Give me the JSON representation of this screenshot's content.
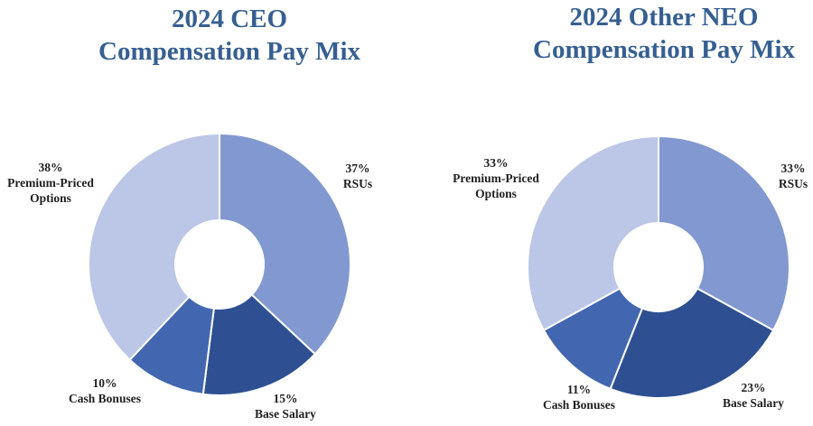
{
  "chart_data": [
    {
      "type": "pie",
      "title_lines": [
        "2024 CEO",
        "Compensation Pay Mix"
      ],
      "slices": [
        {
          "label_lines": [
            "RSUs"
          ],
          "value": 37,
          "value_text": "37%",
          "color": "#8298d0"
        },
        {
          "label_lines": [
            "Base Salary"
          ],
          "value": 15,
          "value_text": "15%",
          "color": "#2e5092"
        },
        {
          "label_lines": [
            "Cash Bonuses"
          ],
          "value": 10,
          "value_text": "10%",
          "color": "#4266b0"
        },
        {
          "label_lines": [
            "Premium-Priced",
            "Options"
          ],
          "value": 38,
          "value_text": "38%",
          "color": "#bcc6e6"
        }
      ]
    },
    {
      "type": "pie",
      "title_lines": [
        "2024 Other NEO",
        "Compensation Pay Mix"
      ],
      "slices": [
        {
          "label_lines": [
            "RSUs"
          ],
          "value": 33,
          "value_text": "33%",
          "color": "#8298d0"
        },
        {
          "label_lines": [
            "Base Salary"
          ],
          "value": 23,
          "value_text": "23%",
          "color": "#2e5092"
        },
        {
          "label_lines": [
            "Cash Bonuses"
          ],
          "value": 11,
          "value_text": "11%",
          "color": "#4266b0"
        },
        {
          "label_lines": [
            "Premium-Priced",
            "Options"
          ],
          "value": 33,
          "value_text": "33%",
          "color": "#bcc6e6"
        }
      ]
    }
  ]
}
